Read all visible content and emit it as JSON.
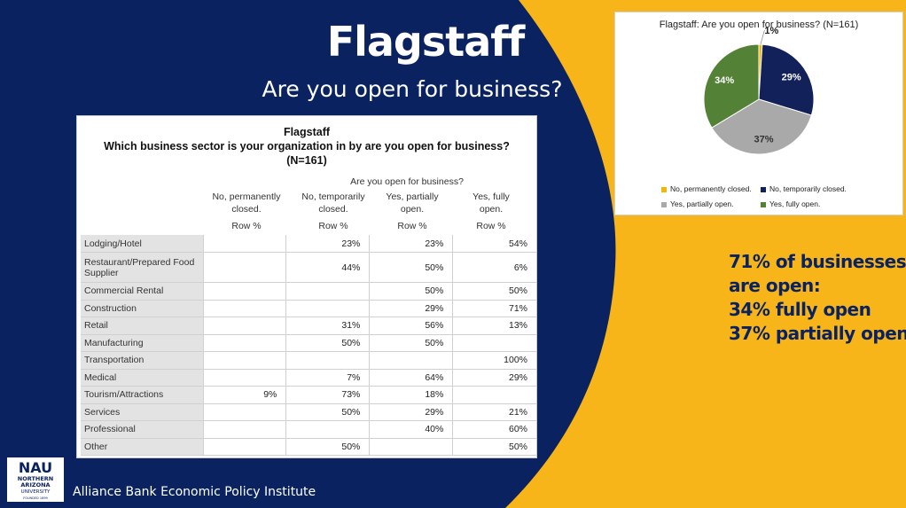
{
  "slide": {
    "title": "Flagstaff",
    "subtitle": "Are you open for business?",
    "footer": "Alliance Bank Economic Policy Institute",
    "colors": {
      "navy": "#0b2260",
      "gold": "#f7b519",
      "white": "#ffffff"
    }
  },
  "logo": {
    "mark": "NAU",
    "line1": "NORTHERN",
    "line2": "ARIZONA",
    "line3": "UNIVERSITY",
    "line4": "FOUNDED 1899"
  },
  "table": {
    "title": "Flagstaff",
    "subtitle": "Which business sector is your organization in by are you open for business?",
    "n_label": "(N=161)",
    "group_header": "Are you open for business?",
    "columns": [
      {
        "line1": "No, permanently",
        "line2": "closed.",
        "sub": "Row %"
      },
      {
        "line1": "No, temporarily",
        "line2": "closed.",
        "sub": "Row %"
      },
      {
        "line1": "Yes, partially",
        "line2": "open.",
        "sub": "Row %"
      },
      {
        "line1": "Yes, fully",
        "line2": "open.",
        "sub": "Row %"
      }
    ],
    "rows": [
      {
        "label": "Lodging/Hotel",
        "values": [
          "",
          "23%",
          "23%",
          "54%"
        ]
      },
      {
        "label": "Restaurant/Prepared Food Supplier",
        "values": [
          "",
          "44%",
          "50%",
          "6%"
        ]
      },
      {
        "label": "Commercial Rental",
        "values": [
          "",
          "",
          "50%",
          "50%"
        ]
      },
      {
        "label": "Construction",
        "values": [
          "",
          "",
          "29%",
          "71%"
        ]
      },
      {
        "label": "Retail",
        "values": [
          "",
          "31%",
          "56%",
          "13%"
        ]
      },
      {
        "label": "Manufacturing",
        "values": [
          "",
          "50%",
          "50%",
          ""
        ]
      },
      {
        "label": "Transportation",
        "values": [
          "",
          "",
          "",
          "100%"
        ]
      },
      {
        "label": "Medical",
        "values": [
          "",
          "7%",
          "64%",
          "29%"
        ]
      },
      {
        "label": "Tourism/Attractions",
        "values": [
          "9%",
          "73%",
          "18%",
          ""
        ]
      },
      {
        "label": "Services",
        "values": [
          "",
          "50%",
          "29%",
          "21%"
        ]
      },
      {
        "label": "Professional",
        "values": [
          "",
          "",
          "40%",
          "60%"
        ]
      },
      {
        "label": "Other",
        "values": [
          "",
          "50%",
          "",
          "50%"
        ]
      }
    ]
  },
  "chart_data": {
    "type": "pie",
    "title": "Flagstaff: Are you open for business? (N=161)",
    "slices": [
      {
        "name": "No, permanently closed.",
        "value": 1,
        "label": "1%",
        "color": "#f2b705"
      },
      {
        "name": "No, temporarily closed.",
        "value": 29,
        "label": "29%",
        "color": "#13215a"
      },
      {
        "name": "Yes, partially open.",
        "value": 37,
        "label": "37%",
        "color": "#a9a9a9"
      },
      {
        "name": "Yes, fully open.",
        "value": 34,
        "label": "34%",
        "color": "#538135"
      }
    ],
    "legend_position": "bottom"
  },
  "callout": {
    "lines": [
      "71% of businesses",
      "are open:",
      "34% fully open",
      "37% partially open"
    ]
  }
}
